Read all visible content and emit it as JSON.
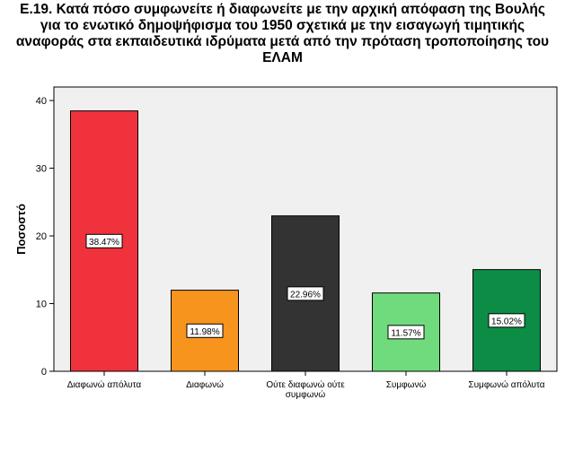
{
  "chart_data": {
    "type": "bar",
    "title_lines": [
      "Ε.19. Κατά πόσο συμφωνείτε ή διαφωνείτε με την αρχική απόφαση της Βουλής",
      "για το ενωτικό δημοψήφισμα του 1950 σχετικά με την εισαγωγή τιμητικής",
      "αναφοράς στα εκπαιδευτικά ιδρύματα μετά από την πρόταση τροποποίησης του",
      "ΕΛΑΜ"
    ],
    "ylabel": "Ποσοστό",
    "xlabel": "",
    "ylim": [
      0,
      42
    ],
    "yticks": [
      0,
      10,
      20,
      30,
      40
    ],
    "grid": false,
    "categories": [
      [
        "Διαφωνώ απόλυτα"
      ],
      [
        "Διαφωνώ"
      ],
      [
        "Ούτε διαφωνώ ούτε",
        "συμφωνώ"
      ],
      [
        "Συμφωνώ"
      ],
      [
        "Συμφωνώ απόλυτα"
      ]
    ],
    "values": [
      38.47,
      11.98,
      22.96,
      11.57,
      15.02
    ],
    "data_labels": [
      "38.47%",
      "11.98%",
      "22.96%",
      "11.57%",
      "15.02%"
    ],
    "colors": [
      "#f0323c",
      "#f7941d",
      "#333333",
      "#6fdb7d",
      "#0d8c45"
    ],
    "plot_background": "#f0f0f0"
  }
}
